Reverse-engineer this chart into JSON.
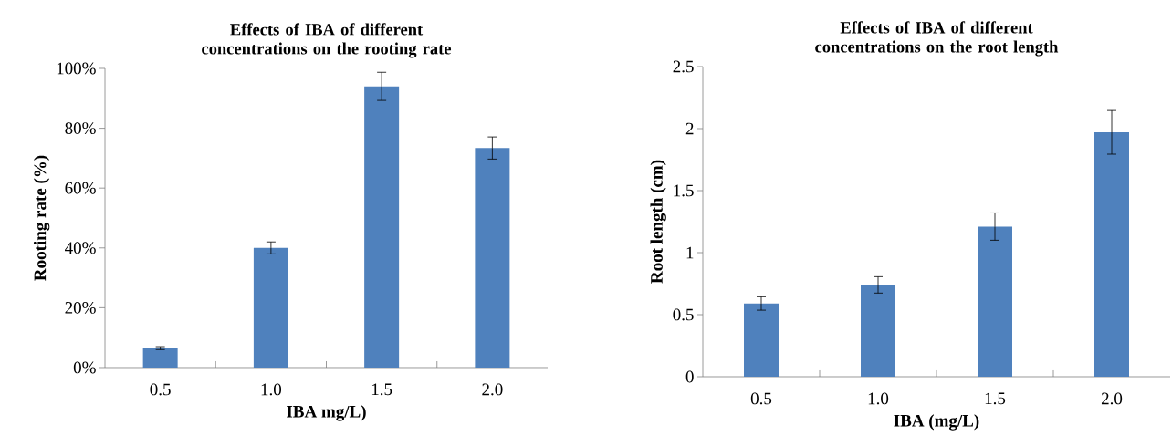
{
  "chart_data": [
    {
      "type": "bar",
      "title": "Effects of IBA of different concentrations on the rooting rate",
      "xlabel": "IBA mg/L)",
      "ylabel": "Rooting rate (%)",
      "categories": [
        "0.5",
        "1.0",
        "1.5",
        "2.0"
      ],
      "values": [
        6.5,
        40,
        94,
        73.4
      ],
      "errors": [
        0.5,
        2,
        4.7,
        3.7
      ],
      "color": "#4f81bd",
      "ylim": [
        0,
        100
      ],
      "yticks": [
        {
          "value": 0,
          "label": "0%"
        },
        {
          "value": 20,
          "label": "20%"
        },
        {
          "value": 40,
          "label": "40%"
        },
        {
          "value": 60,
          "label": "60%"
        },
        {
          "value": 80,
          "label": "80%"
        },
        {
          "value": 100,
          "label": "100%"
        }
      ]
    },
    {
      "type": "bar",
      "title": "Effects of IBA of different concentrations on the root length",
      "xlabel": "IBA (mg/L)",
      "ylabel": "Root length (cm)",
      "categories": [
        "0.5",
        "1.0",
        "1.5",
        "2.0"
      ],
      "values": [
        0.59,
        0.74,
        1.21,
        1.97
      ],
      "errors": [
        0.054,
        0.066,
        0.11,
        0.176
      ],
      "color": "#4f81bd",
      "ylim": [
        0,
        2.5
      ],
      "yticks": [
        0,
        0.5,
        1,
        1.5,
        2,
        2.5
      ]
    }
  ]
}
